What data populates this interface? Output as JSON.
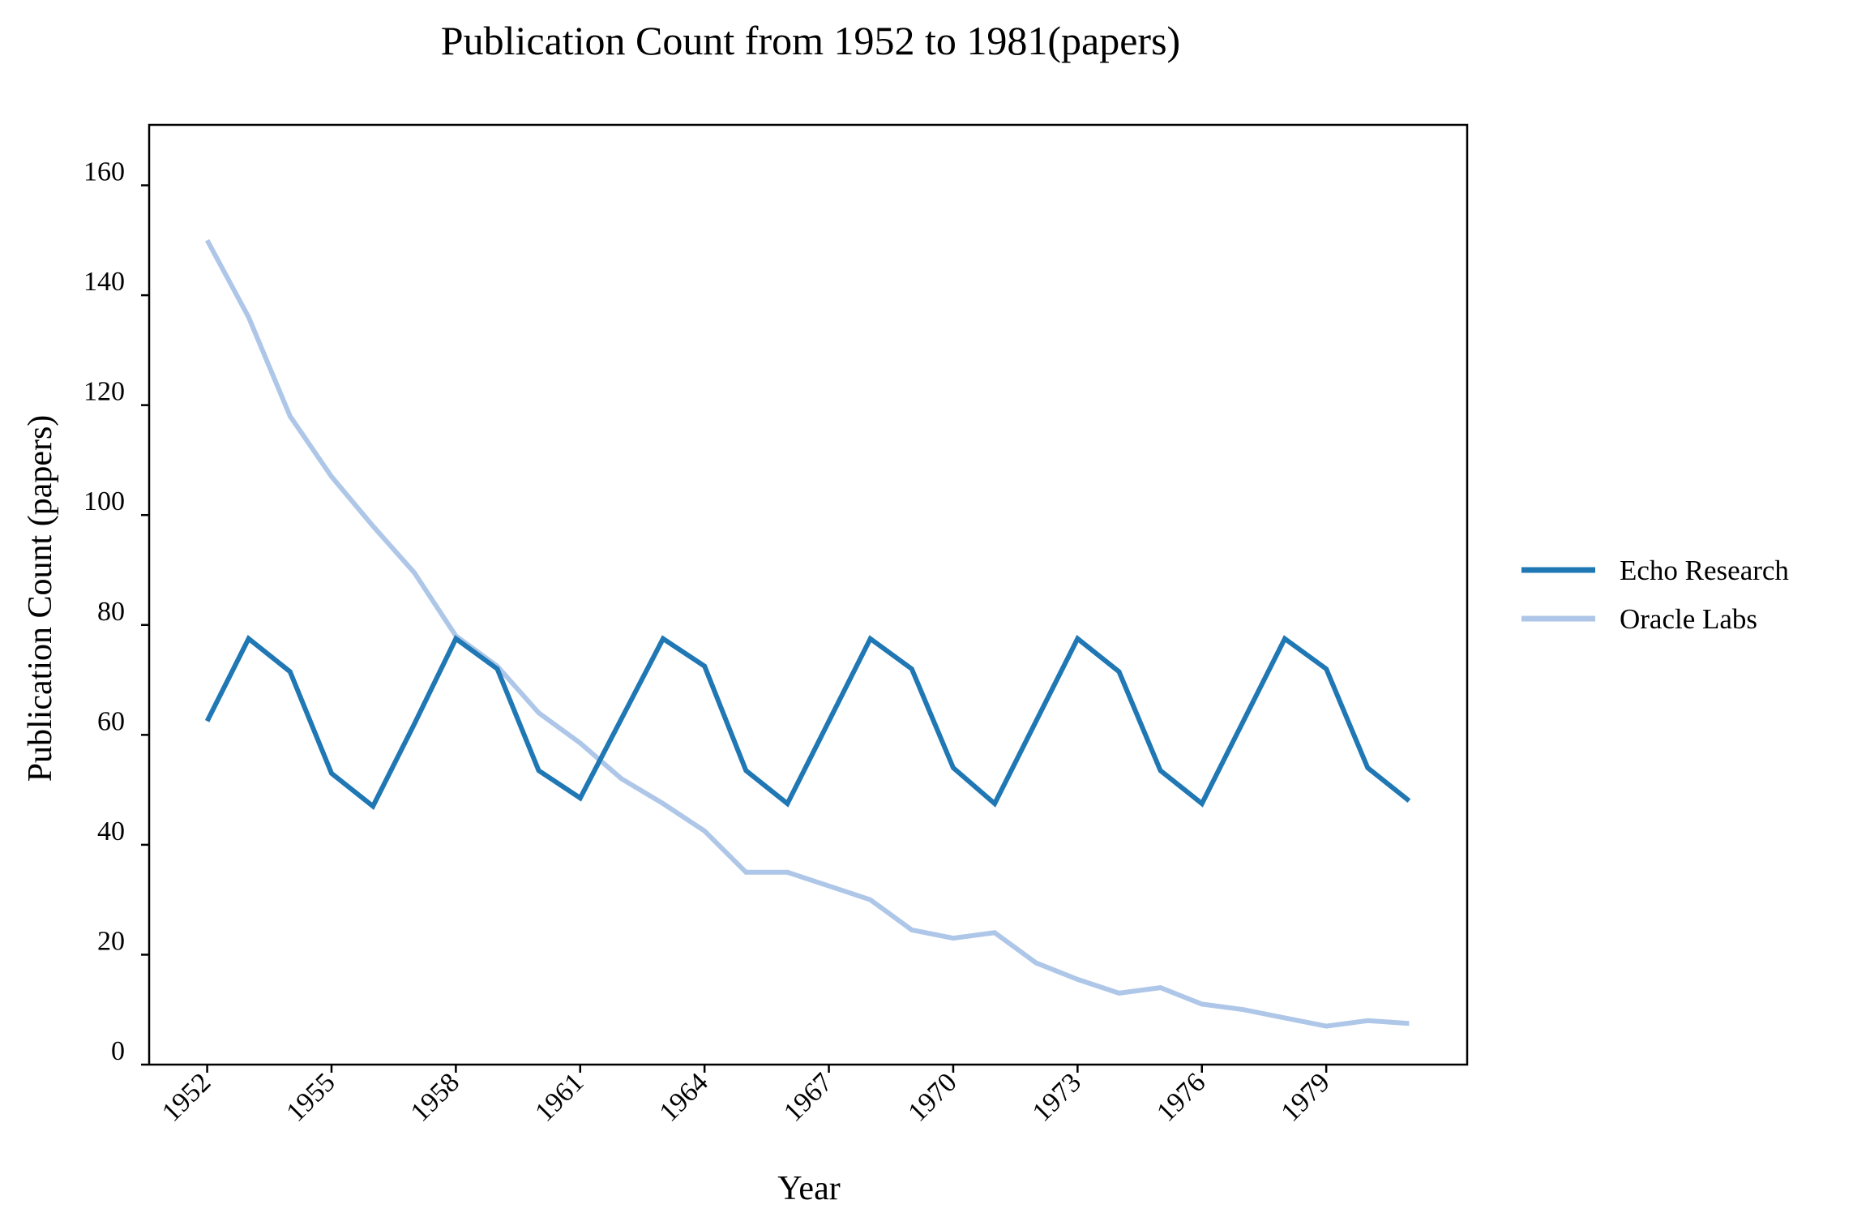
{
  "chart_data": {
    "type": "line",
    "title": "Publication Count from 1952 to 1981(papers)",
    "xlabel": "Year",
    "ylabel": "Publication Count (papers)",
    "x": [
      1952,
      1953,
      1954,
      1955,
      1956,
      1957,
      1958,
      1959,
      1960,
      1961,
      1962,
      1963,
      1964,
      1965,
      1966,
      1967,
      1968,
      1969,
      1970,
      1971,
      1972,
      1973,
      1974,
      1975,
      1976,
      1977,
      1978,
      1979,
      1980,
      1981
    ],
    "xticks": [
      "1952",
      "1955",
      "1958",
      "1961",
      "1964",
      "1967",
      "1970",
      "1973",
      "1976",
      "1979"
    ],
    "yticks": [
      "0",
      "20",
      "40",
      "60",
      "80",
      "100",
      "120",
      "140",
      "160"
    ],
    "xlim": [
      1950.6,
      1982.4
    ],
    "ylim": [
      0,
      171
    ],
    "grid": false,
    "legend_position": "right",
    "series": [
      {
        "name": "Echo Research",
        "color": "#1f77b4",
        "values": [
          62.5,
          77.5,
          71.5,
          53,
          47,
          62,
          77.5,
          72,
          53.5,
          48.5,
          63,
          77.5,
          72.5,
          53.5,
          47.5,
          62.5,
          77.5,
          72,
          54,
          47.5,
          62.5,
          77.5,
          71.5,
          53.5,
          47.5,
          62.5,
          77.5,
          72,
          54,
          48
        ]
      },
      {
        "name": "Oracle Labs",
        "color": "#aec7e8",
        "values": [
          150,
          136,
          118,
          107,
          98,
          89.5,
          78,
          72.5,
          64,
          58.5,
          52,
          47.5,
          42.5,
          35,
          35,
          32.5,
          30,
          24.5,
          23,
          24,
          18.5,
          15.5,
          13,
          14,
          11,
          10,
          8.5,
          7,
          8,
          7.5
        ]
      }
    ]
  }
}
